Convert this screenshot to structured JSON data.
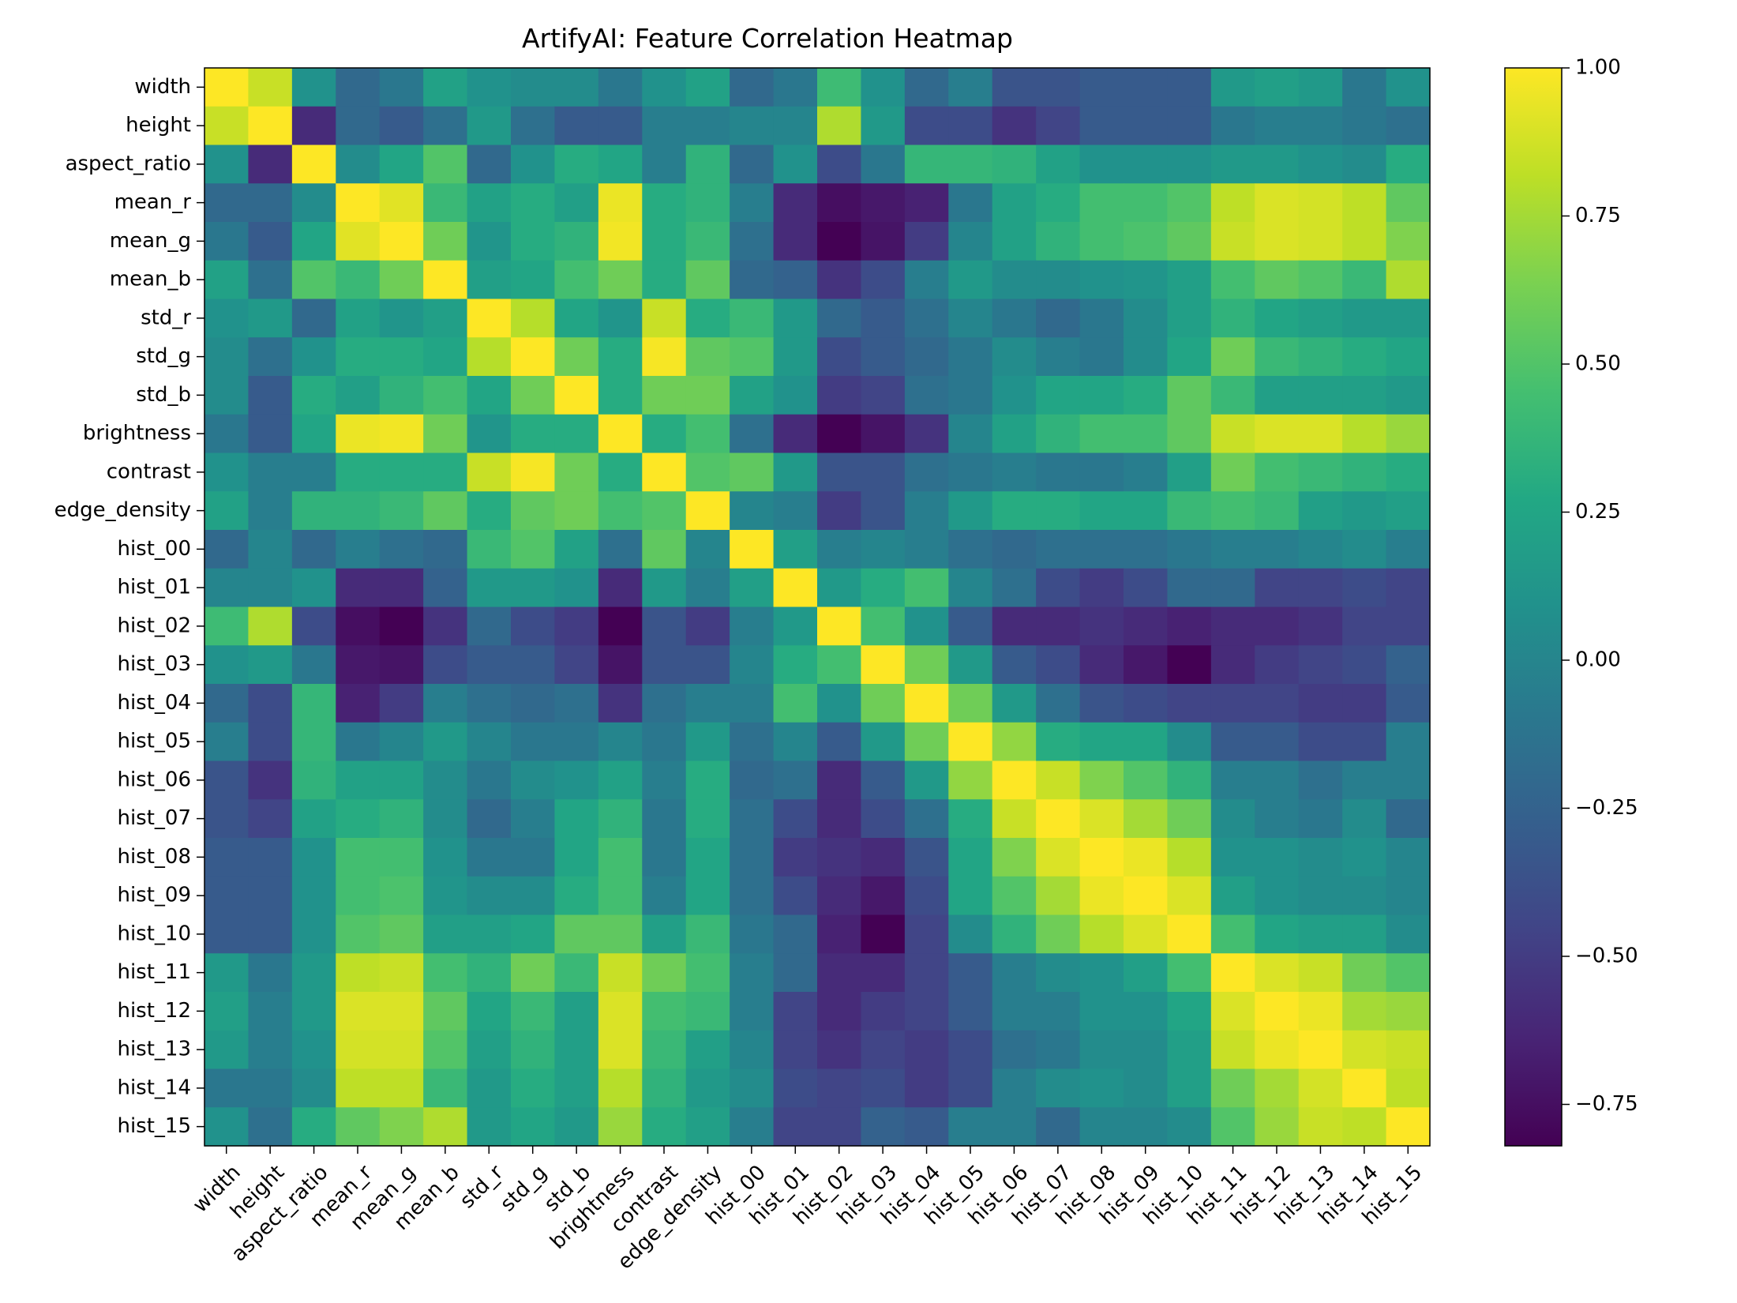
{
  "chart_data": {
    "type": "heatmap",
    "title": "ArtifyAI: Feature Correlation Heatmap",
    "xlabel": "",
    "ylabel": "",
    "colormap": "viridis",
    "vmin": -0.82,
    "vmax": 1.0,
    "colorbar_ticks": [
      1.0,
      0.75,
      0.5,
      0.25,
      0.0,
      -0.25,
      -0.5,
      -0.75
    ],
    "colorbar_tick_labels": [
      "1.00",
      "0.75",
      "0.50",
      "0.25",
      "0.00",
      "−0.25",
      "−0.50",
      "−0.75"
    ],
    "legend_position": "right",
    "labels": [
      "width",
      "height",
      "aspect_ratio",
      "mean_r",
      "mean_g",
      "mean_b",
      "std_r",
      "std_g",
      "std_b",
      "brightness",
      "contrast",
      "edge_density",
      "hist_00",
      "hist_01",
      "hist_02",
      "hist_03",
      "hist_04",
      "hist_05",
      "hist_06",
      "hist_07",
      "hist_08",
      "hist_09",
      "hist_10",
      "hist_11",
      "hist_12",
      "hist_13",
      "hist_14",
      "hist_15"
    ],
    "matrix": [
      [
        1.0,
        0.85,
        0.1,
        -0.2,
        -0.1,
        0.22,
        0.1,
        0.05,
        0.05,
        -0.1,
        0.1,
        0.22,
        -0.2,
        -0.1,
        0.42,
        0.1,
        -0.2,
        -0.05,
        -0.35,
        -0.35,
        -0.3,
        -0.3,
        -0.3,
        0.15,
        0.2,
        0.15,
        -0.1,
        0.1
      ],
      [
        0.85,
        1.0,
        -0.6,
        -0.2,
        -0.3,
        -0.15,
        0.15,
        -0.15,
        -0.3,
        -0.3,
        -0.05,
        -0.05,
        0.0,
        0.0,
        0.78,
        0.15,
        -0.4,
        -0.4,
        -0.55,
        -0.45,
        -0.3,
        -0.3,
        -0.3,
        -0.1,
        -0.05,
        -0.05,
        -0.1,
        -0.15
      ],
      [
        0.1,
        -0.6,
        1.0,
        0.05,
        0.25,
        0.5,
        -0.2,
        0.1,
        0.3,
        0.25,
        -0.05,
        0.35,
        -0.2,
        0.1,
        -0.4,
        -0.1,
        0.38,
        0.38,
        0.35,
        0.22,
        0.1,
        0.1,
        0.1,
        0.15,
        0.15,
        0.1,
        0.05,
        0.3
      ],
      [
        -0.2,
        -0.2,
        0.05,
        1.0,
        0.92,
        0.4,
        0.22,
        0.3,
        0.2,
        0.95,
        0.3,
        0.35,
        -0.05,
        -0.6,
        -0.75,
        -0.7,
        -0.65,
        -0.1,
        0.22,
        0.3,
        0.45,
        0.45,
        0.5,
        0.82,
        0.9,
        0.88,
        0.82,
        0.55
      ],
      [
        -0.1,
        -0.3,
        0.25,
        0.92,
        1.0,
        0.6,
        0.12,
        0.3,
        0.35,
        0.97,
        0.3,
        0.4,
        -0.15,
        -0.6,
        -0.82,
        -0.72,
        -0.5,
        0.0,
        0.22,
        0.35,
        0.45,
        0.48,
        0.55,
        0.85,
        0.9,
        0.88,
        0.82,
        0.65
      ],
      [
        0.22,
        -0.15,
        0.5,
        0.4,
        0.6,
        1.0,
        0.2,
        0.25,
        0.45,
        0.6,
        0.3,
        0.55,
        -0.2,
        -0.25,
        -0.55,
        -0.4,
        -0.05,
        0.15,
        0.05,
        0.05,
        0.1,
        0.12,
        0.2,
        0.45,
        0.55,
        0.5,
        0.4,
        0.78
      ],
      [
        0.1,
        0.15,
        -0.2,
        0.22,
        0.12,
        0.2,
        1.0,
        0.8,
        0.25,
        0.12,
        0.85,
        0.3,
        0.4,
        0.15,
        -0.2,
        -0.3,
        -0.15,
        0.0,
        -0.1,
        -0.2,
        -0.1,
        0.05,
        0.2,
        0.35,
        0.25,
        0.2,
        0.15,
        0.15
      ],
      [
        0.05,
        -0.15,
        0.1,
        0.3,
        0.3,
        0.25,
        0.8,
        1.0,
        0.6,
        0.3,
        0.98,
        0.55,
        0.5,
        0.15,
        -0.4,
        -0.3,
        -0.2,
        -0.1,
        0.05,
        -0.05,
        -0.1,
        0.05,
        0.25,
        0.6,
        0.4,
        0.35,
        0.3,
        0.25
      ],
      [
        0.05,
        -0.3,
        0.3,
        0.2,
        0.35,
        0.45,
        0.25,
        0.6,
        1.0,
        0.3,
        0.6,
        0.6,
        0.22,
        0.1,
        -0.5,
        -0.45,
        -0.15,
        -0.1,
        0.1,
        0.25,
        0.25,
        0.3,
        0.55,
        0.4,
        0.2,
        0.2,
        0.2,
        0.15
      ],
      [
        -0.1,
        -0.3,
        0.25,
        0.95,
        0.97,
        0.6,
        0.12,
        0.3,
        0.3,
        1.0,
        0.3,
        0.45,
        -0.15,
        -0.6,
        -0.82,
        -0.72,
        -0.55,
        0.0,
        0.22,
        0.35,
        0.45,
        0.45,
        0.55,
        0.85,
        0.9,
        0.9,
        0.8,
        0.72
      ],
      [
        0.1,
        -0.05,
        -0.05,
        0.3,
        0.3,
        0.3,
        0.85,
        0.98,
        0.6,
        0.3,
        1.0,
        0.5,
        0.55,
        0.15,
        -0.35,
        -0.35,
        -0.15,
        -0.1,
        -0.05,
        -0.1,
        -0.1,
        -0.05,
        0.2,
        0.6,
        0.45,
        0.4,
        0.35,
        0.3
      ],
      [
        0.22,
        -0.05,
        0.35,
        0.35,
        0.4,
        0.55,
        0.3,
        0.55,
        0.6,
        0.45,
        0.5,
        1.0,
        0.0,
        -0.05,
        -0.5,
        -0.35,
        -0.05,
        0.15,
        0.3,
        0.3,
        0.25,
        0.25,
        0.4,
        0.45,
        0.4,
        0.2,
        0.15,
        0.2
      ],
      [
        -0.2,
        0.0,
        -0.2,
        -0.05,
        -0.15,
        -0.2,
        0.4,
        0.5,
        0.22,
        -0.15,
        0.55,
        0.0,
        1.0,
        0.2,
        -0.05,
        0.0,
        -0.05,
        -0.15,
        -0.2,
        -0.15,
        -0.15,
        -0.15,
        -0.1,
        -0.05,
        -0.05,
        0.0,
        0.05,
        -0.05
      ],
      [
        0.0,
        0.0,
        0.1,
        -0.6,
        -0.6,
        -0.25,
        0.15,
        0.15,
        0.1,
        -0.6,
        0.15,
        -0.05,
        0.2,
        1.0,
        0.15,
        0.3,
        0.45,
        0.0,
        -0.15,
        -0.4,
        -0.5,
        -0.4,
        -0.2,
        -0.2,
        -0.45,
        -0.45,
        -0.4,
        -0.45
      ],
      [
        0.42,
        0.78,
        -0.4,
        -0.75,
        -0.82,
        -0.55,
        -0.2,
        -0.4,
        -0.5,
        -0.82,
        -0.35,
        -0.5,
        -0.05,
        0.15,
        1.0,
        0.45,
        0.1,
        -0.3,
        -0.6,
        -0.6,
        -0.55,
        -0.6,
        -0.65,
        -0.6,
        -0.6,
        -0.55,
        -0.45,
        -0.45
      ],
      [
        0.1,
        0.15,
        -0.1,
        -0.7,
        -0.72,
        -0.4,
        -0.3,
        -0.3,
        -0.45,
        -0.72,
        -0.35,
        -0.35,
        0.0,
        0.3,
        0.45,
        1.0,
        0.6,
        0.15,
        -0.3,
        -0.4,
        -0.6,
        -0.7,
        -0.82,
        -0.6,
        -0.5,
        -0.45,
        -0.4,
        -0.25
      ],
      [
        -0.2,
        -0.4,
        0.38,
        -0.65,
        -0.5,
        -0.05,
        -0.15,
        -0.2,
        -0.15,
        -0.55,
        -0.15,
        -0.05,
        -0.05,
        0.45,
        0.1,
        0.6,
        1.0,
        0.6,
        0.15,
        -0.15,
        -0.35,
        -0.4,
        -0.45,
        -0.45,
        -0.45,
        -0.5,
        -0.5,
        -0.3
      ],
      [
        -0.05,
        -0.4,
        0.38,
        -0.1,
        0.0,
        0.15,
        0.0,
        -0.1,
        -0.1,
        0.0,
        -0.1,
        0.15,
        -0.15,
        0.0,
        -0.3,
        0.15,
        0.6,
        1.0,
        0.7,
        0.3,
        0.25,
        0.25,
        0.05,
        -0.3,
        -0.3,
        -0.4,
        -0.4,
        -0.05
      ],
      [
        -0.35,
        -0.55,
        0.35,
        0.22,
        0.22,
        0.05,
        -0.1,
        0.05,
        0.1,
        0.22,
        -0.05,
        0.3,
        -0.2,
        -0.15,
        -0.6,
        -0.3,
        0.15,
        0.7,
        1.0,
        0.85,
        0.65,
        0.5,
        0.35,
        -0.05,
        -0.05,
        -0.15,
        -0.05,
        -0.05
      ],
      [
        -0.35,
        -0.45,
        0.22,
        0.3,
        0.35,
        0.05,
        -0.2,
        -0.05,
        0.25,
        0.35,
        -0.1,
        0.3,
        -0.15,
        -0.4,
        -0.6,
        -0.4,
        -0.15,
        0.3,
        0.85,
        1.0,
        0.9,
        0.75,
        0.6,
        0.05,
        -0.05,
        -0.1,
        0.05,
        -0.2
      ],
      [
        -0.3,
        -0.3,
        0.1,
        0.45,
        0.45,
        0.1,
        -0.1,
        -0.1,
        0.25,
        0.45,
        -0.1,
        0.25,
        -0.15,
        -0.5,
        -0.55,
        -0.6,
        -0.35,
        0.25,
        0.65,
        0.9,
        1.0,
        0.95,
        0.8,
        0.1,
        0.1,
        0.05,
        0.1,
        0.0
      ],
      [
        -0.3,
        -0.3,
        0.1,
        0.45,
        0.48,
        0.12,
        0.05,
        0.05,
        0.3,
        0.45,
        -0.05,
        0.25,
        -0.15,
        -0.4,
        -0.6,
        -0.7,
        -0.4,
        0.25,
        0.5,
        0.75,
        0.95,
        1.0,
        0.9,
        0.2,
        0.1,
        0.05,
        0.05,
        0.0
      ],
      [
        -0.3,
        -0.3,
        0.1,
        0.5,
        0.55,
        0.2,
        0.2,
        0.25,
        0.55,
        0.55,
        0.2,
        0.4,
        -0.1,
        -0.2,
        -0.65,
        -0.82,
        -0.45,
        0.05,
        0.35,
        0.6,
        0.8,
        0.9,
        1.0,
        0.45,
        0.25,
        0.2,
        0.2,
        0.05
      ],
      [
        0.15,
        -0.1,
        0.15,
        0.82,
        0.85,
        0.45,
        0.35,
        0.6,
        0.4,
        0.85,
        0.6,
        0.45,
        -0.05,
        -0.2,
        -0.6,
        -0.6,
        -0.45,
        -0.3,
        -0.05,
        0.05,
        0.1,
        0.2,
        0.45,
        1.0,
        0.9,
        0.85,
        0.6,
        0.5
      ],
      [
        0.2,
        -0.05,
        0.15,
        0.9,
        0.9,
        0.55,
        0.25,
        0.4,
        0.2,
        0.9,
        0.45,
        0.4,
        -0.05,
        -0.45,
        -0.6,
        -0.5,
        -0.45,
        -0.3,
        -0.05,
        -0.05,
        0.1,
        0.1,
        0.25,
        0.9,
        1.0,
        0.95,
        0.75,
        0.72
      ],
      [
        0.15,
        -0.05,
        0.1,
        0.88,
        0.88,
        0.5,
        0.2,
        0.35,
        0.2,
        0.9,
        0.4,
        0.2,
        0.0,
        -0.45,
        -0.55,
        -0.45,
        -0.5,
        -0.4,
        -0.15,
        -0.1,
        0.05,
        0.05,
        0.2,
        0.85,
        0.95,
        1.0,
        0.88,
        0.85
      ],
      [
        -0.1,
        -0.1,
        0.05,
        0.82,
        0.82,
        0.4,
        0.15,
        0.3,
        0.2,
        0.8,
        0.35,
        0.15,
        0.05,
        -0.4,
        -0.45,
        -0.4,
        -0.5,
        -0.4,
        -0.05,
        0.05,
        0.1,
        0.05,
        0.2,
        0.6,
        0.75,
        0.88,
        1.0,
        0.82
      ],
      [
        0.1,
        -0.15,
        0.3,
        0.55,
        0.65,
        0.78,
        0.15,
        0.25,
        0.15,
        0.72,
        0.3,
        0.2,
        -0.05,
        -0.45,
        -0.45,
        -0.25,
        -0.3,
        -0.05,
        -0.05,
        -0.2,
        0.0,
        0.0,
        0.05,
        0.5,
        0.72,
        0.85,
        0.82,
        1.0
      ]
    ]
  }
}
